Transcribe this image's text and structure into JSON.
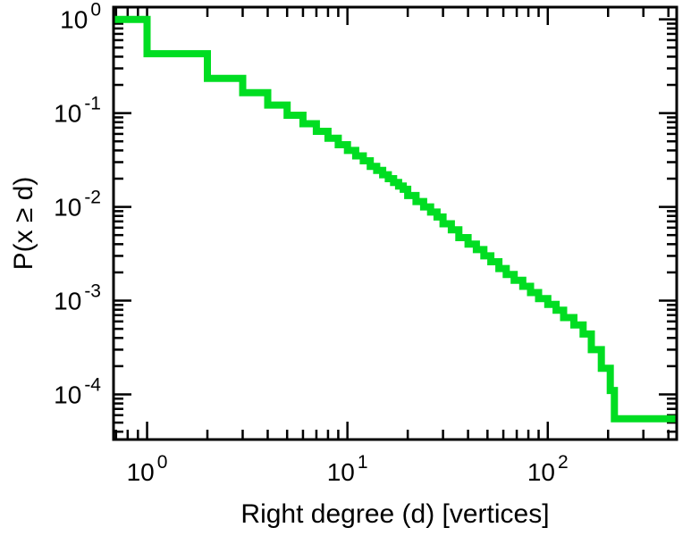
{
  "figure": {
    "background": "#ffffff"
  },
  "chart_data": {
    "type": "line",
    "subtype": "ccdf_staircase_loglog",
    "title": "",
    "xlabel": "Right degree (d) [vertices]",
    "ylabel": "P(x ≥ d)",
    "xscale": "log",
    "yscale": "log",
    "xlim": [
      0.68,
      440
    ],
    "ylim": [
      3.3e-05,
      1.35
    ],
    "x_major_tick_exponents": [
      0,
      1,
      2
    ],
    "y_major_tick_exponents": [
      0,
      -1,
      -2,
      -3,
      -4
    ],
    "grid": false,
    "legend": "none",
    "line_color": "#00dd22",
    "line_width": 8,
    "frame_color": "#000000",
    "x": [
      1,
      2,
      3,
      4,
      5,
      6,
      7,
      8,
      9,
      10,
      11,
      12,
      13,
      14,
      15,
      16,
      17,
      18,
      19,
      20,
      22,
      24,
      26,
      28,
      30,
      33,
      36,
      40,
      44,
      48,
      52,
      57,
      62,
      68,
      75,
      82,
      90,
      100,
      110,
      120,
      135,
      150,
      165,
      185,
      205,
      215,
      430
    ],
    "y": [
      1.0,
      0.43,
      0.235,
      0.165,
      0.122,
      0.095,
      0.077,
      0.064,
      0.054,
      0.046,
      0.04,
      0.035,
      0.031,
      0.027,
      0.0245,
      0.022,
      0.02,
      0.0182,
      0.0167,
      0.0154,
      0.0132,
      0.0114,
      0.01,
      0.0088,
      0.0078,
      0.0066,
      0.0057,
      0.0047,
      0.004,
      0.0035,
      0.003,
      0.0026,
      0.0022,
      0.0019,
      0.00165,
      0.00142,
      0.00122,
      0.00105,
      0.00091,
      0.00079,
      0.00066,
      0.00055,
      0.00044,
      0.0003,
      0.00019,
      0.00011,
      5.5e-05
    ]
  }
}
